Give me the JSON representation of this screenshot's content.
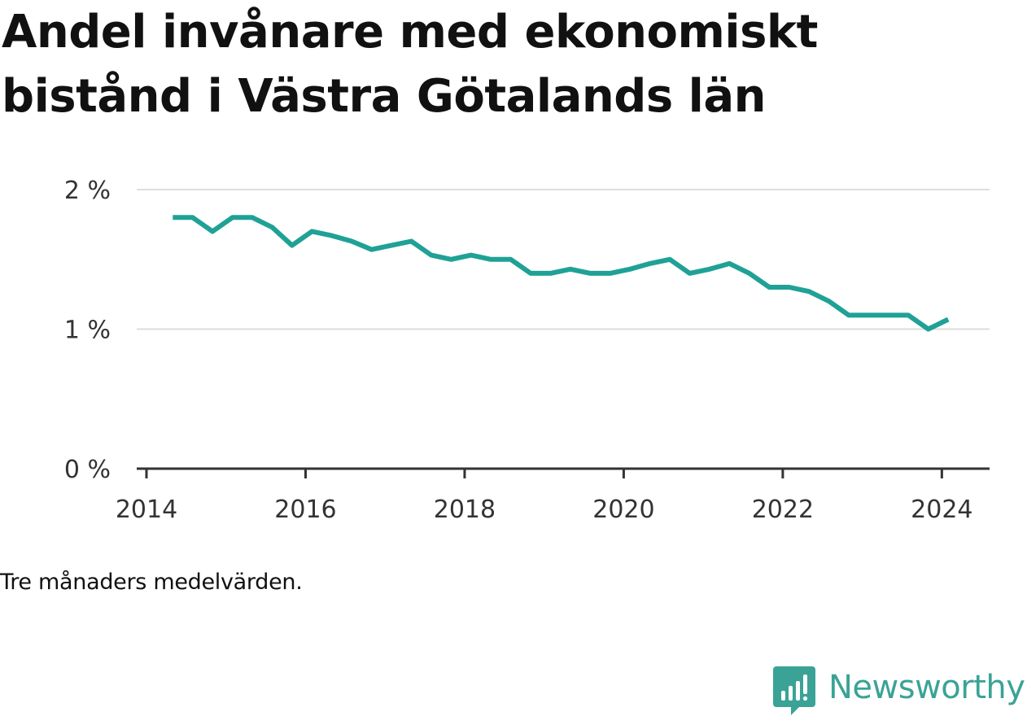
{
  "chart_data": {
    "type": "line",
    "title": "Andel invånare med ekonomiskt bistånd i Västra Götalands län",
    "note": "Tre månaders medelvärden.",
    "xlabel": "",
    "ylabel": "",
    "xlim": [
      2014.0,
      2024.6
    ],
    "ylim": [
      0,
      2
    ],
    "x_ticks": [
      2014,
      2016,
      2018,
      2020,
      2022,
      2024
    ],
    "x_tick_labels": [
      "2014",
      "2016",
      "2018",
      "2020",
      "2022",
      "2024"
    ],
    "y_ticks": [
      0,
      1,
      2
    ],
    "y_tick_labels": [
      "0 %",
      "1 %",
      "2 %"
    ],
    "grid": true,
    "line_color": "#1fa196",
    "series": [
      {
        "x": [
          2014.33,
          2014.58,
          2014.83,
          2015.08,
          2015.33,
          2015.58,
          2015.83,
          2016.08,
          2016.33,
          2016.58,
          2016.83,
          2017.08,
          2017.33,
          2017.58,
          2017.83,
          2018.08,
          2018.33,
          2018.58,
          2018.83,
          2019.08,
          2019.33,
          2019.58,
          2019.83,
          2020.08,
          2020.33,
          2020.58,
          2020.83,
          2021.08,
          2021.33,
          2021.58,
          2021.83,
          2022.08,
          2022.33,
          2022.58,
          2022.83,
          2023.08,
          2023.33,
          2023.58,
          2023.83,
          2024.08
        ],
        "values": [
          1.8,
          1.8,
          1.7,
          1.8,
          1.8,
          1.73,
          1.6,
          1.7,
          1.67,
          1.63,
          1.57,
          1.6,
          1.63,
          1.53,
          1.5,
          1.53,
          1.5,
          1.5,
          1.4,
          1.4,
          1.43,
          1.4,
          1.4,
          1.43,
          1.47,
          1.5,
          1.4,
          1.43,
          1.47,
          1.4,
          1.3,
          1.3,
          1.27,
          1.2,
          1.1,
          1.1,
          1.1,
          1.1,
          1.0,
          1.07
        ]
      }
    ]
  },
  "brand": {
    "name": "Newsworthy",
    "icon": "newsworthy-logo-icon",
    "color": "#3aa396"
  }
}
